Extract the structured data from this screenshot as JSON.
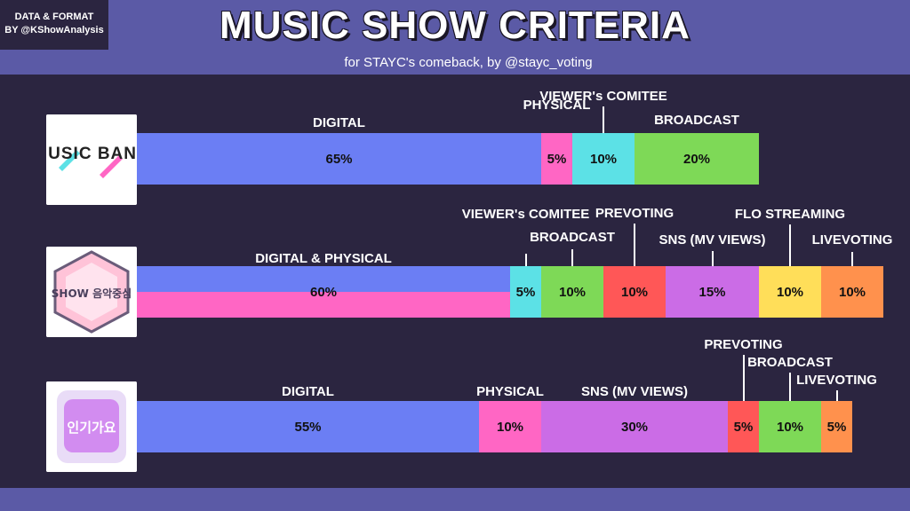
{
  "header": {
    "credit_line1": "DATA & FORMAT",
    "credit_line2": "BY @KShowAnalysis",
    "title": "MUSIC SHOW CRITERIA",
    "subtitle": "for STAYC's comeback, by @stayc_voting"
  },
  "logos": {
    "show1": "MUSIC BANK",
    "show2": "SHOW 음악중심",
    "show3": "인기가요"
  },
  "colors": {
    "background": "#2b2540",
    "band": "#5b5aa6",
    "digital": "#6b7ef4",
    "physical": "#ff66c4",
    "viewer": "#5ce1e6",
    "broadcast": "#7ed957",
    "prevoting": "#ff5757",
    "sns": "#cb6ce6",
    "flo": "#ffde59",
    "livevoting": "#ff914d"
  },
  "chart_data": [
    {
      "type": "bar",
      "stacked": true,
      "orientation": "horizontal",
      "series": [
        {
          "name": "DIGITAL",
          "value": 65,
          "label": "65%",
          "color": "#6b7ef4"
        },
        {
          "name": "PHYSICAL",
          "value": 5,
          "label": "5%",
          "color": "#ff66c4"
        },
        {
          "name": "VIEWER's COMITEE",
          "value": 10,
          "label": "10%",
          "color": "#5ce1e6"
        },
        {
          "name": "BROADCAST",
          "value": 20,
          "label": "20%",
          "color": "#7ed957"
        }
      ]
    },
    {
      "type": "bar",
      "stacked": true,
      "orientation": "horizontal",
      "series": [
        {
          "name": "DIGITAL & PHYSICAL",
          "value": 60,
          "label": "60%",
          "color": "#6b7ef4",
          "color2": "#ff66c4"
        },
        {
          "name": "VIEWER's COMITEE",
          "value": 5,
          "label": "5%",
          "color": "#5ce1e6"
        },
        {
          "name": "BROADCAST",
          "value": 10,
          "label": "10%",
          "color": "#7ed957"
        },
        {
          "name": "PREVOTING",
          "value": 10,
          "label": "10%",
          "color": "#ff5757"
        },
        {
          "name": "SNS (MV VIEWS)",
          "value": 15,
          "label": "15%",
          "color": "#cb6ce6"
        },
        {
          "name": "FLO STREAMING",
          "value": 10,
          "label": "10%",
          "color": "#ffde59"
        },
        {
          "name": "LIVEVOTING",
          "value": 10,
          "label": "10%",
          "color": "#ff914d"
        }
      ]
    },
    {
      "type": "bar",
      "stacked": true,
      "orientation": "horizontal",
      "series": [
        {
          "name": "DIGITAL",
          "value": 55,
          "label": "55%",
          "color": "#6b7ef4"
        },
        {
          "name": "PHYSICAL",
          "value": 10,
          "label": "10%",
          "color": "#ff66c4"
        },
        {
          "name": "SNS (MV VIEWS)",
          "value": 30,
          "label": "30%",
          "color": "#cb6ce6"
        },
        {
          "name": "PREVOTING",
          "value": 5,
          "label": "5%",
          "color": "#ff5757"
        },
        {
          "name": "BROADCAST",
          "value": 10,
          "label": "10%",
          "color": "#7ed957"
        },
        {
          "name": "LIVEVOTING",
          "value": 5,
          "label": "5%",
          "color": "#ff914d"
        }
      ]
    }
  ]
}
